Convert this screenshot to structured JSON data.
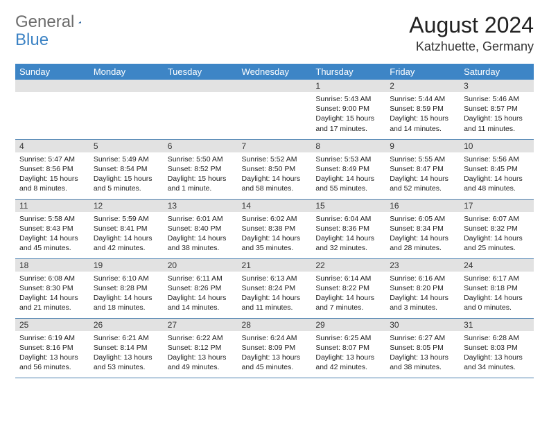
{
  "logo": {
    "general": "General",
    "blue": "Blue"
  },
  "title": "August 2024",
  "location": "Katzhuette, Germany",
  "colors": {
    "header_bg": "#3d85c6",
    "daynum_bg": "#e2e2e2",
    "row_border": "#4a7faf",
    "logo_gray": "#6b6b6b",
    "logo_blue": "#3b82c4"
  },
  "weekdays": [
    "Sunday",
    "Monday",
    "Tuesday",
    "Wednesday",
    "Thursday",
    "Friday",
    "Saturday"
  ],
  "weeks": [
    [
      null,
      null,
      null,
      null,
      {
        "n": "1",
        "sr": "5:43 AM",
        "ss": "9:00 PM",
        "dl": "15 hours and 17 minutes."
      },
      {
        "n": "2",
        "sr": "5:44 AM",
        "ss": "8:59 PM",
        "dl": "15 hours and 14 minutes."
      },
      {
        "n": "3",
        "sr": "5:46 AM",
        "ss": "8:57 PM",
        "dl": "15 hours and 11 minutes."
      }
    ],
    [
      {
        "n": "4",
        "sr": "5:47 AM",
        "ss": "8:56 PM",
        "dl": "15 hours and 8 minutes."
      },
      {
        "n": "5",
        "sr": "5:49 AM",
        "ss": "8:54 PM",
        "dl": "15 hours and 5 minutes."
      },
      {
        "n": "6",
        "sr": "5:50 AM",
        "ss": "8:52 PM",
        "dl": "15 hours and 1 minute."
      },
      {
        "n": "7",
        "sr": "5:52 AM",
        "ss": "8:50 PM",
        "dl": "14 hours and 58 minutes."
      },
      {
        "n": "8",
        "sr": "5:53 AM",
        "ss": "8:49 PM",
        "dl": "14 hours and 55 minutes."
      },
      {
        "n": "9",
        "sr": "5:55 AM",
        "ss": "8:47 PM",
        "dl": "14 hours and 52 minutes."
      },
      {
        "n": "10",
        "sr": "5:56 AM",
        "ss": "8:45 PM",
        "dl": "14 hours and 48 minutes."
      }
    ],
    [
      {
        "n": "11",
        "sr": "5:58 AM",
        "ss": "8:43 PM",
        "dl": "14 hours and 45 minutes."
      },
      {
        "n": "12",
        "sr": "5:59 AM",
        "ss": "8:41 PM",
        "dl": "14 hours and 42 minutes."
      },
      {
        "n": "13",
        "sr": "6:01 AM",
        "ss": "8:40 PM",
        "dl": "14 hours and 38 minutes."
      },
      {
        "n": "14",
        "sr": "6:02 AM",
        "ss": "8:38 PM",
        "dl": "14 hours and 35 minutes."
      },
      {
        "n": "15",
        "sr": "6:04 AM",
        "ss": "8:36 PM",
        "dl": "14 hours and 32 minutes."
      },
      {
        "n": "16",
        "sr": "6:05 AM",
        "ss": "8:34 PM",
        "dl": "14 hours and 28 minutes."
      },
      {
        "n": "17",
        "sr": "6:07 AM",
        "ss": "8:32 PM",
        "dl": "14 hours and 25 minutes."
      }
    ],
    [
      {
        "n": "18",
        "sr": "6:08 AM",
        "ss": "8:30 PM",
        "dl": "14 hours and 21 minutes."
      },
      {
        "n": "19",
        "sr": "6:10 AM",
        "ss": "8:28 PM",
        "dl": "14 hours and 18 minutes."
      },
      {
        "n": "20",
        "sr": "6:11 AM",
        "ss": "8:26 PM",
        "dl": "14 hours and 14 minutes."
      },
      {
        "n": "21",
        "sr": "6:13 AM",
        "ss": "8:24 PM",
        "dl": "14 hours and 11 minutes."
      },
      {
        "n": "22",
        "sr": "6:14 AM",
        "ss": "8:22 PM",
        "dl": "14 hours and 7 minutes."
      },
      {
        "n": "23",
        "sr": "6:16 AM",
        "ss": "8:20 PM",
        "dl": "14 hours and 3 minutes."
      },
      {
        "n": "24",
        "sr": "6:17 AM",
        "ss": "8:18 PM",
        "dl": "14 hours and 0 minutes."
      }
    ],
    [
      {
        "n": "25",
        "sr": "6:19 AM",
        "ss": "8:16 PM",
        "dl": "13 hours and 56 minutes."
      },
      {
        "n": "26",
        "sr": "6:21 AM",
        "ss": "8:14 PM",
        "dl": "13 hours and 53 minutes."
      },
      {
        "n": "27",
        "sr": "6:22 AM",
        "ss": "8:12 PM",
        "dl": "13 hours and 49 minutes."
      },
      {
        "n": "28",
        "sr": "6:24 AM",
        "ss": "8:09 PM",
        "dl": "13 hours and 45 minutes."
      },
      {
        "n": "29",
        "sr": "6:25 AM",
        "ss": "8:07 PM",
        "dl": "13 hours and 42 minutes."
      },
      {
        "n": "30",
        "sr": "6:27 AM",
        "ss": "8:05 PM",
        "dl": "13 hours and 38 minutes."
      },
      {
        "n": "31",
        "sr": "6:28 AM",
        "ss": "8:03 PM",
        "dl": "13 hours and 34 minutes."
      }
    ]
  ],
  "labels": {
    "sunrise": "Sunrise:",
    "sunset": "Sunset:",
    "daylight": "Daylight:"
  }
}
